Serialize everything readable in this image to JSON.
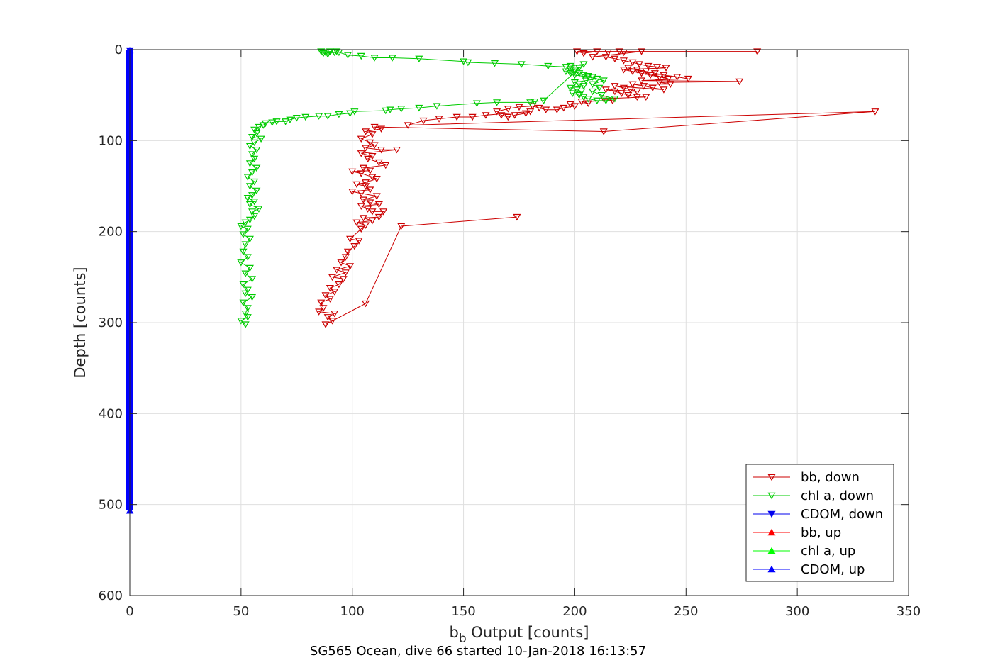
{
  "chart_data": {
    "type": "scatter",
    "title": "",
    "caption": "SG565 Ocean, dive 66 started 10-Jan-2018 16:13:57",
    "xlabel_main": "b",
    "xlabel_sub": "b",
    "xlabel_rest": " Output [counts]",
    "ylabel": "Depth [counts]",
    "xlim": [
      0,
      350
    ],
    "ylim": [
      0,
      600
    ],
    "y_reversed": true,
    "xticks": [
      0,
      50,
      100,
      150,
      200,
      250,
      300,
      350
    ],
    "yticks": [
      0,
      100,
      200,
      300,
      400,
      500,
      600
    ],
    "grid": true,
    "legend_position": "bottom-right",
    "series": [
      {
        "name": "bb, down",
        "color": "#cc0000",
        "marker": "down",
        "points": [
          [
            282,
            2
          ],
          [
            201,
            2
          ],
          [
            204,
            4
          ],
          [
            210,
            2
          ],
          [
            215,
            3
          ],
          [
            220,
            2
          ],
          [
            222,
            3
          ],
          [
            230,
            2
          ],
          [
            208,
            8
          ],
          [
            214,
            8
          ],
          [
            218,
            10
          ],
          [
            222,
            12
          ],
          [
            226,
            14
          ],
          [
            229,
            16
          ],
          [
            233,
            18
          ],
          [
            237,
            19
          ],
          [
            241,
            20
          ],
          [
            222,
            22
          ],
          [
            226,
            24
          ],
          [
            230,
            26
          ],
          [
            234,
            28
          ],
          [
            238,
            30
          ],
          [
            242,
            32
          ],
          [
            224,
            20
          ],
          [
            228,
            22
          ],
          [
            232,
            24
          ],
          [
            236,
            26
          ],
          [
            240,
            28
          ],
          [
            246,
            30
          ],
          [
            251,
            32
          ],
          [
            230,
            34
          ],
          [
            274,
            35
          ],
          [
            238,
            36
          ],
          [
            243,
            38
          ],
          [
            226,
            38
          ],
          [
            231,
            40
          ],
          [
            235,
            42
          ],
          [
            240,
            44
          ],
          [
            218,
            40
          ],
          [
            222,
            42
          ],
          [
            225,
            44
          ],
          [
            228,
            46
          ],
          [
            214,
            44
          ],
          [
            218,
            46
          ],
          [
            221,
            48
          ],
          [
            224,
            50
          ],
          [
            228,
            52
          ],
          [
            232,
            52
          ],
          [
            213,
            54
          ],
          [
            217,
            56
          ],
          [
            203,
            57
          ],
          [
            206,
            59
          ],
          [
            198,
            60
          ],
          [
            200,
            62
          ],
          [
            195,
            64
          ],
          [
            192,
            66
          ],
          [
            187,
            66
          ],
          [
            184,
            64
          ],
          [
            181,
            62
          ],
          [
            175,
            63
          ],
          [
            170,
            65
          ],
          [
            165,
            68
          ],
          [
            167,
            72
          ],
          [
            170,
            74
          ],
          [
            173,
            72
          ],
          [
            178,
            70
          ],
          [
            180,
            68
          ],
          [
            160,
            72
          ],
          [
            154,
            74
          ],
          [
            147,
            74
          ],
          [
            139,
            76
          ],
          [
            132,
            78
          ],
          [
            125,
            83
          ],
          [
            335,
            68
          ],
          [
            213,
            90
          ],
          [
            110,
            85
          ],
          [
            113,
            87
          ],
          [
            106,
            90
          ],
          [
            109,
            93
          ],
          [
            104,
            98
          ],
          [
            108,
            102
          ],
          [
            110,
            105
          ],
          [
            106,
            108
          ],
          [
            113,
            110
          ],
          [
            120,
            110
          ],
          [
            104,
            114
          ],
          [
            109,
            117
          ],
          [
            107,
            120
          ],
          [
            112,
            124
          ],
          [
            115,
            127
          ],
          [
            105,
            130
          ],
          [
            108,
            133
          ],
          [
            100,
            134
          ],
          [
            104,
            136
          ],
          [
            109,
            140
          ],
          [
            111,
            142
          ],
          [
            106,
            146
          ],
          [
            102,
            148
          ],
          [
            106,
            150
          ],
          [
            108,
            154
          ],
          [
            100,
            156
          ],
          [
            104,
            158
          ],
          [
            111,
            161
          ],
          [
            105,
            165
          ],
          [
            108,
            168
          ],
          [
            112,
            170
          ],
          [
            104,
            172
          ],
          [
            107,
            175
          ],
          [
            109,
            178
          ],
          [
            114,
            178
          ],
          [
            112,
            184
          ],
          [
            105,
            185
          ],
          [
            109,
            188
          ],
          [
            102,
            190
          ],
          [
            106,
            193
          ],
          [
            104,
            197
          ],
          [
            99,
            208
          ],
          [
            103,
            210
          ],
          [
            101,
            216
          ],
          [
            98,
            222
          ],
          [
            97,
            228
          ],
          [
            95,
            234
          ],
          [
            99,
            238
          ],
          [
            93,
            242
          ],
          [
            97,
            245
          ],
          [
            91,
            250
          ],
          [
            96,
            252
          ],
          [
            94,
            258
          ],
          [
            90,
            262
          ],
          [
            92,
            266
          ],
          [
            88,
            270
          ],
          [
            90,
            274
          ],
          [
            86,
            278
          ],
          [
            87,
            284
          ],
          [
            85,
            288
          ],
          [
            92,
            290
          ],
          [
            89,
            294
          ],
          [
            91,
            298
          ],
          [
            88,
            302
          ],
          [
            106,
            279
          ],
          [
            122,
            194
          ],
          [
            174,
            184
          ]
        ]
      },
      {
        "name": "chl a, down",
        "color": "#00cc00",
        "marker": "down",
        "points": [
          [
            86,
            2
          ],
          [
            88,
            3
          ],
          [
            90,
            2
          ],
          [
            92,
            3
          ],
          [
            93,
            2
          ],
          [
            89,
            5
          ],
          [
            87,
            4
          ],
          [
            94,
            3
          ],
          [
            98,
            6
          ],
          [
            104,
            7
          ],
          [
            110,
            9
          ],
          [
            118,
            9
          ],
          [
            130,
            10
          ],
          [
            150,
            13
          ],
          [
            152,
            14
          ],
          [
            164,
            15
          ],
          [
            176,
            16
          ],
          [
            188,
            18
          ],
          [
            196,
            19
          ],
          [
            198,
            22
          ],
          [
            200,
            24
          ],
          [
            202,
            26
          ],
          [
            204,
            28
          ],
          [
            206,
            29
          ],
          [
            208,
            30
          ],
          [
            210,
            32
          ],
          [
            205,
            34
          ],
          [
            200,
            36
          ],
          [
            202,
            38
          ],
          [
            204,
            40
          ],
          [
            198,
            42
          ],
          [
            201,
            44
          ],
          [
            203,
            46
          ],
          [
            199,
            48
          ],
          [
            202,
            50
          ],
          [
            204,
            52
          ],
          [
            206,
            54
          ],
          [
            210,
            56
          ],
          [
            214,
            56
          ],
          [
            218,
            54
          ],
          [
            212,
            50
          ],
          [
            208,
            46
          ],
          [
            211,
            42
          ],
          [
            208,
            38
          ],
          [
            213,
            34
          ],
          [
            206,
            30
          ],
          [
            200,
            28
          ],
          [
            198,
            26
          ],
          [
            196,
            24
          ],
          [
            200,
            22
          ],
          [
            202,
            20
          ],
          [
            198,
            18
          ],
          [
            204,
            16
          ],
          [
            186,
            56
          ],
          [
            182,
            57
          ],
          [
            180,
            58
          ],
          [
            165,
            58
          ],
          [
            156,
            59
          ],
          [
            138,
            62
          ],
          [
            130,
            64
          ],
          [
            122,
            65
          ],
          [
            117,
            66
          ],
          [
            115,
            67
          ],
          [
            101,
            68
          ],
          [
            99,
            70
          ],
          [
            94,
            71
          ],
          [
            89,
            73
          ],
          [
            85,
            73
          ],
          [
            79,
            74
          ],
          [
            75,
            75
          ],
          [
            72,
            77
          ],
          [
            70,
            79
          ],
          [
            66,
            79
          ],
          [
            64,
            80
          ],
          [
            61,
            81
          ],
          [
            60,
            83
          ],
          [
            58,
            85
          ],
          [
            56,
            88
          ],
          [
            57,
            92
          ],
          [
            55,
            96
          ],
          [
            59,
            98
          ],
          [
            56,
            102
          ],
          [
            54,
            106
          ],
          [
            57,
            110
          ],
          [
            55,
            115
          ],
          [
            56,
            120
          ],
          [
            54,
            125
          ],
          [
            57,
            130
          ],
          [
            55,
            135
          ],
          [
            53,
            140
          ],
          [
            56,
            145
          ],
          [
            54,
            150
          ],
          [
            57,
            155
          ],
          [
            55,
            160
          ],
          [
            53,
            163
          ],
          [
            56,
            167
          ],
          [
            54,
            170
          ],
          [
            58,
            175
          ],
          [
            55,
            178
          ],
          [
            56,
            183
          ],
          [
            54,
            187
          ],
          [
            52,
            190
          ],
          [
            50,
            194
          ],
          [
            53,
            197
          ],
          [
            51,
            203
          ],
          [
            54,
            208
          ],
          [
            52,
            214
          ],
          [
            51,
            222
          ],
          [
            53,
            228
          ],
          [
            50,
            234
          ],
          [
            54,
            240
          ],
          [
            52,
            246
          ],
          [
            55,
            252
          ],
          [
            51,
            258
          ],
          [
            53,
            264
          ],
          [
            52,
            268
          ],
          [
            55,
            272
          ],
          [
            51,
            278
          ],
          [
            53,
            284
          ],
          [
            52,
            290
          ],
          [
            53,
            294
          ],
          [
            50,
            298
          ],
          [
            52,
            302
          ]
        ]
      },
      {
        "name": "CDOM, down",
        "color": "#0000ee",
        "marker": "down",
        "points": [
          [
            0,
            0
          ],
          [
            0,
            506
          ]
        ]
      },
      {
        "name": "bb, up",
        "color": "#ff0000",
        "marker": "up",
        "points": []
      },
      {
        "name": "chl a, up",
        "color": "#00ff00",
        "marker": "up",
        "points": []
      },
      {
        "name": "CDOM, up",
        "color": "#0000ff",
        "marker": "up",
        "points": [
          [
            0,
            0
          ],
          [
            0,
            506
          ]
        ]
      }
    ]
  }
}
